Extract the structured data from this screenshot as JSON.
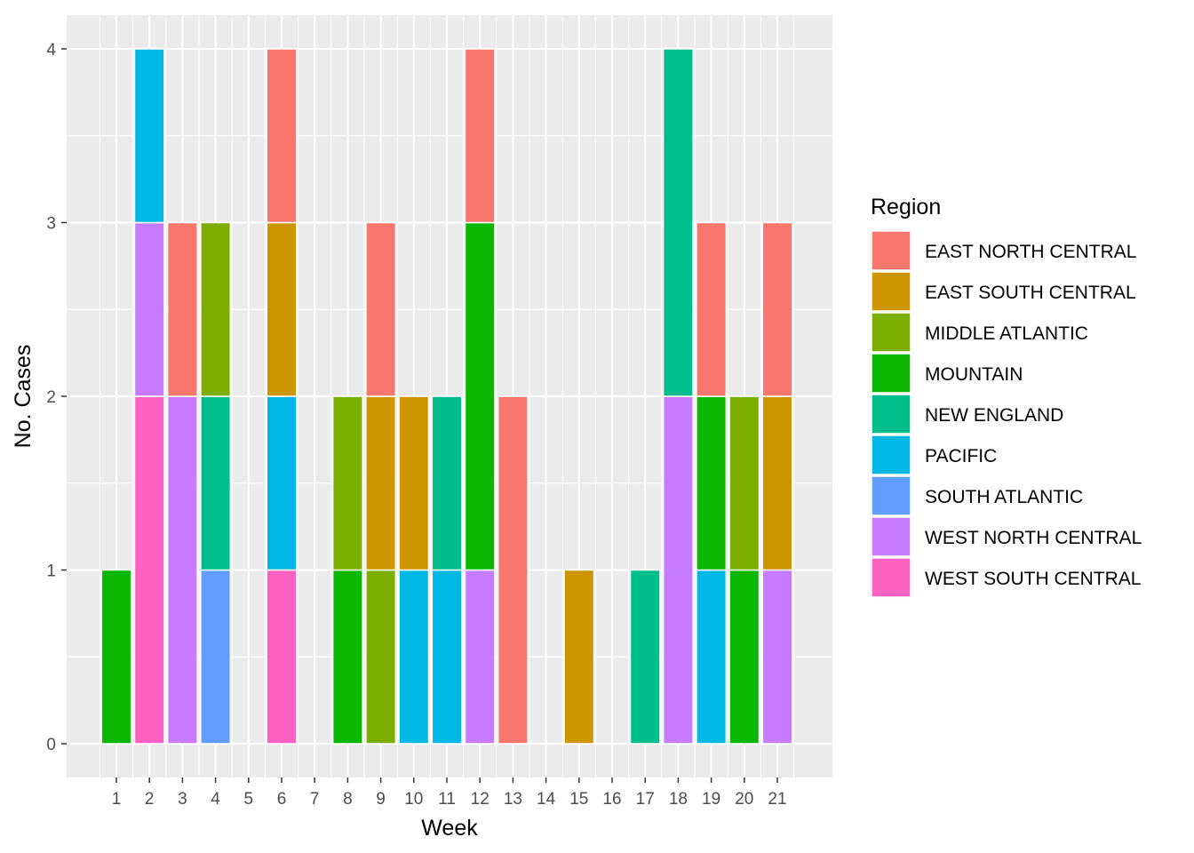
{
  "chart_data": {
    "type": "bar",
    "stacked": true,
    "xlabel": "Week",
    "ylabel": "No. Cases",
    "categories": [
      "1",
      "2",
      "3",
      "4",
      "5",
      "6",
      "7",
      "8",
      "9",
      "10",
      "11",
      "12",
      "13",
      "14",
      "15",
      "16",
      "17",
      "18",
      "19",
      "20",
      "21"
    ],
    "y_ticks": [
      "0",
      "1",
      "2",
      "3",
      "4"
    ],
    "ylim": [
      0,
      4
    ],
    "grid": true,
    "legend": {
      "title": "Region",
      "placement": "right"
    },
    "series": [
      {
        "name": "EAST NORTH CENTRAL",
        "color": "#F8766D",
        "values": [
          0,
          0,
          1,
          0,
          0,
          1,
          0,
          0,
          1,
          0,
          0,
          1,
          2,
          0,
          0,
          0,
          0,
          0,
          1,
          0,
          1
        ]
      },
      {
        "name": "EAST SOUTH CENTRAL",
        "color": "#CD9600",
        "values": [
          0,
          0,
          0,
          0,
          0,
          1,
          0,
          0,
          1,
          1,
          0,
          0,
          0,
          0,
          1,
          0,
          0,
          0,
          0,
          0,
          1
        ]
      },
      {
        "name": "MIDDLE ATLANTIC",
        "color": "#7CAE00",
        "values": [
          0,
          0,
          0,
          1,
          0,
          0,
          0,
          1,
          1,
          0,
          0,
          0,
          0,
          0,
          0,
          0,
          0,
          0,
          0,
          1,
          0
        ]
      },
      {
        "name": "MOUNTAIN",
        "color": "#0CB702",
        "values": [
          1,
          0,
          0,
          0,
          0,
          0,
          0,
          1,
          0,
          0,
          0,
          2,
          0,
          0,
          0,
          0,
          0,
          0,
          1,
          1,
          0
        ]
      },
      {
        "name": "NEW ENGLAND",
        "color": "#00BE8C",
        "values": [
          0,
          0,
          0,
          1,
          0,
          0,
          0,
          0,
          0,
          0,
          1,
          0,
          0,
          0,
          0,
          0,
          1,
          2,
          0,
          0,
          0
        ]
      },
      {
        "name": "PACIFIC",
        "color": "#00B8E5",
        "values": [
          0,
          1,
          0,
          0,
          0,
          1,
          0,
          0,
          0,
          1,
          1,
          0,
          0,
          0,
          0,
          0,
          0,
          0,
          1,
          0,
          0
        ]
      },
      {
        "name": "SOUTH ATLANTIC",
        "color": "#619CFF",
        "values": [
          0,
          0,
          0,
          1,
          0,
          0,
          0,
          0,
          0,
          0,
          0,
          0,
          0,
          0,
          0,
          0,
          0,
          0,
          0,
          0,
          0
        ]
      },
      {
        "name": "WEST NORTH CENTRAL",
        "color": "#C77CFF",
        "values": [
          0,
          1,
          2,
          0,
          0,
          0,
          0,
          0,
          0,
          0,
          0,
          1,
          0,
          0,
          0,
          0,
          0,
          2,
          0,
          0,
          1
        ]
      },
      {
        "name": "WEST SOUTH CENTRAL",
        "color": "#FF61C3",
        "values": [
          0,
          2,
          0,
          0,
          0,
          1,
          0,
          0,
          0,
          0,
          0,
          0,
          0,
          0,
          0,
          0,
          0,
          0,
          0,
          0,
          0
        ]
      }
    ],
    "colors": {
      "panel_background": "#EBEBEB",
      "grid_major": "#FFFFFF",
      "tick_text": "#4D4D4D",
      "bar_outline": "#FFFFFF"
    }
  }
}
